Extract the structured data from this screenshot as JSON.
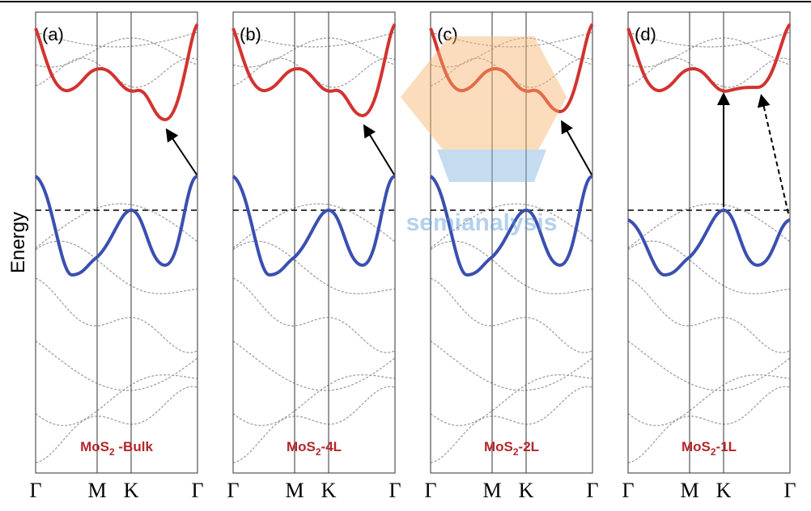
{
  "y_label": "Energy",
  "k_points": [
    "Γ",
    "M",
    "K",
    "Γ"
  ],
  "watermark": "semianalysis",
  "panels": [
    {
      "label": "(a)",
      "title": {
        "base": "MoS",
        "sub": "2",
        "suffix": " -Bulk"
      }
    },
    {
      "label": "(b)",
      "title": {
        "base": "MoS",
        "sub": "2",
        "suffix": "-4L"
      }
    },
    {
      "label": "(c)",
      "title": {
        "base": "MoS",
        "sub": "2",
        "suffix": "-2L"
      }
    },
    {
      "label": "(d)",
      "title": {
        "base": "MoS",
        "sub": "2",
        "suffix": "-1L"
      }
    }
  ]
}
